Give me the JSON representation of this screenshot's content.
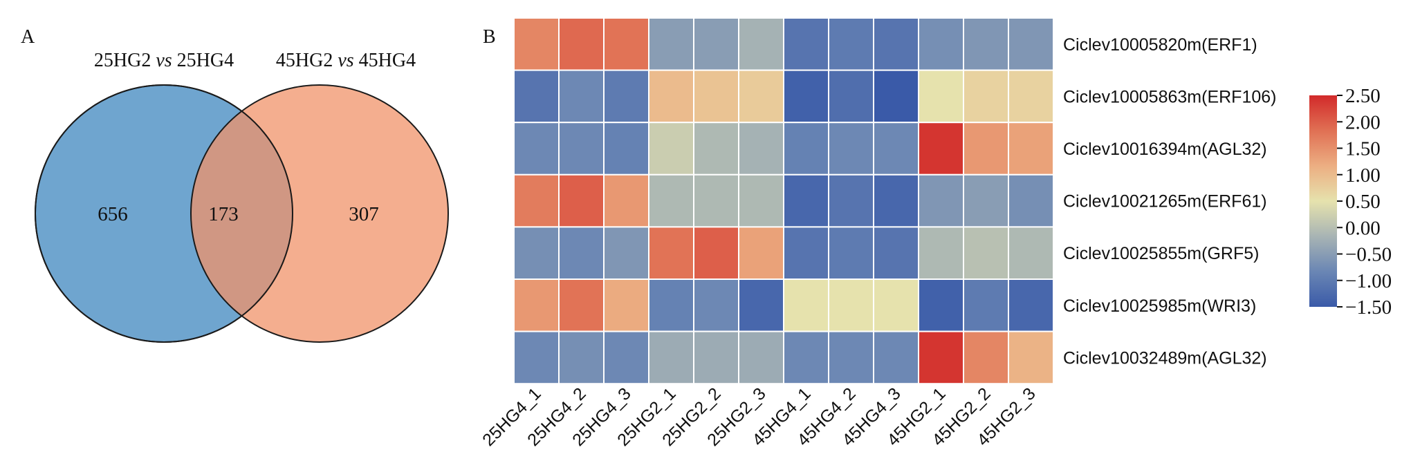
{
  "panel_a": {
    "label": "A",
    "left_title_prefix": "25HG2 ",
    "left_title_vs": "vs",
    "left_title_suffix": " 25HG4",
    "right_title_prefix": "45HG2 ",
    "right_title_vs": "vs",
    "right_title_suffix": " 45HG4",
    "left_color": "#6fa5cf",
    "right_color": "#f0936a"
  },
  "panel_b": {
    "label": "B"
  },
  "chart_data": [
    {
      "type": "venn",
      "sets": [
        "25HG2 vs 25HG4",
        "45HG2 vs 45HG4"
      ],
      "only_left": "656",
      "overlap": "173",
      "only_right": "307"
    },
    {
      "type": "heatmap",
      "columns": [
        "25HG4_1",
        "25HG4_2",
        "25HG4_3",
        "25HG2_1",
        "25HG2_2",
        "25HG2_3",
        "45HG4_1",
        "45HG4_2",
        "45HG4_3",
        "45HG2_1",
        "45HG2_2",
        "45HG2_3"
      ],
      "rows": [
        "Ciclev10005820m(ERF1)",
        "Ciclev10005863m(ERF106)",
        "Ciclev10016394m(AGL32)",
        "Ciclev10021265m(ERF61)",
        "Ciclev10025855m(GRF5)",
        "Ciclev10025985m(WRI3)",
        "Ciclev10032489m(AGL32)"
      ],
      "values": [
        [
          1.6,
          1.9,
          1.8,
          -0.5,
          -0.5,
          -0.2,
          -1.1,
          -1.0,
          -1.1,
          -0.7,
          -0.6,
          -0.6
        ],
        [
          -1.1,
          -0.8,
          -1.0,
          1.0,
          0.9,
          0.8,
          -1.4,
          -1.2,
          -1.5,
          0.5,
          0.7,
          0.7
        ],
        [
          -0.8,
          -0.8,
          -0.9,
          0.2,
          -0.1,
          -0.2,
          -0.9,
          -0.8,
          -0.8,
          2.4,
          1.4,
          1.3
        ],
        [
          1.7,
          2.0,
          1.4,
          -0.1,
          -0.1,
          -0.1,
          -1.3,
          -1.1,
          -1.3,
          -0.6,
          -0.5,
          -0.7
        ],
        [
          -0.7,
          -0.8,
          -0.6,
          1.8,
          2.0,
          1.3,
          -1.1,
          -1.0,
          -1.1,
          -0.1,
          0.0,
          -0.1
        ],
        [
          1.4,
          1.8,
          1.2,
          -0.9,
          -0.8,
          -1.3,
          0.5,
          0.5,
          0.5,
          -1.4,
          -1.0,
          -1.3
        ],
        [
          -0.8,
          -0.7,
          -0.8,
          -0.3,
          -0.3,
          -0.3,
          -0.8,
          -0.8,
          -0.8,
          2.4,
          1.6,
          1.1
        ]
      ],
      "colorbar": {
        "min": -1.5,
        "max": 2.5,
        "ticks": [
          2.5,
          2.0,
          1.5,
          1.0,
          0.5,
          0.0,
          -0.5,
          -1.0,
          -1.5
        ],
        "tick_labels": [
          "2.50",
          "2.00",
          "1.50",
          "1.00",
          "0.50",
          "0.00",
          "−0.50",
          "−1.00",
          "−1.50"
        ],
        "colors": [
          "#3a5aa8",
          "#6a86b4",
          "#a8b4b4",
          "#e6e2ad",
          "#ecae82",
          "#e07054",
          "#d22a2a"
        ]
      },
      "cell_border_color": "#ffffff"
    }
  ]
}
